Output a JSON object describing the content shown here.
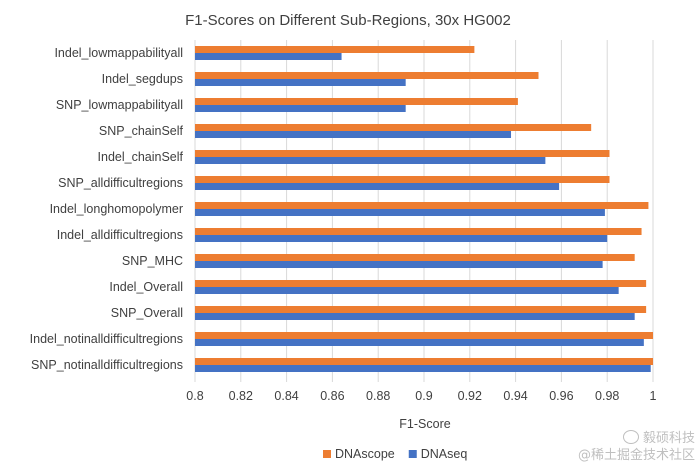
{
  "chart_data": {
    "type": "bar",
    "orientation": "horizontal",
    "title": "F1-Scores on Different Sub-Regions, 30x HG002",
    "xlabel": "F1-Score",
    "ylabel": "",
    "xlim": [
      0.8,
      1.0
    ],
    "xticks": [
      "0.8",
      "0.82",
      "0.84",
      "0.86",
      "0.88",
      "0.9",
      "0.92",
      "0.94",
      "0.96",
      "0.98",
      "1"
    ],
    "grid": "vertical",
    "legend_position": "bottom",
    "categories": [
      "Indel_lowmappabilityall",
      "Indel_segdups",
      "SNP_lowmappabilityall",
      "SNP_chainSelf",
      "Indel_chainSelf",
      "SNP_alldifficultregions",
      "Indel_longhomopolymer",
      "Indel_alldifficultregions",
      "SNP_MHC",
      "Indel_Overall",
      "SNP_Overall",
      "Indel_notinalldifficultregions",
      "SNP_notinalldifficultregions"
    ],
    "series": [
      {
        "name": "DNAscope",
        "color": "#ED7D31",
        "values": [
          0.922,
          0.95,
          0.941,
          0.973,
          0.981,
          0.981,
          0.998,
          0.995,
          0.992,
          0.997,
          0.997,
          1.0,
          1.0
        ]
      },
      {
        "name": "DNAseq",
        "color": "#4472C4",
        "values": [
          0.864,
          0.892,
          0.892,
          0.938,
          0.953,
          0.959,
          0.979,
          0.98,
          0.978,
          0.985,
          0.992,
          0.996,
          0.999
        ]
      }
    ]
  },
  "watermark": {
    "line1": "毅硕科技",
    "line2": "@稀土掘金技术社区"
  }
}
